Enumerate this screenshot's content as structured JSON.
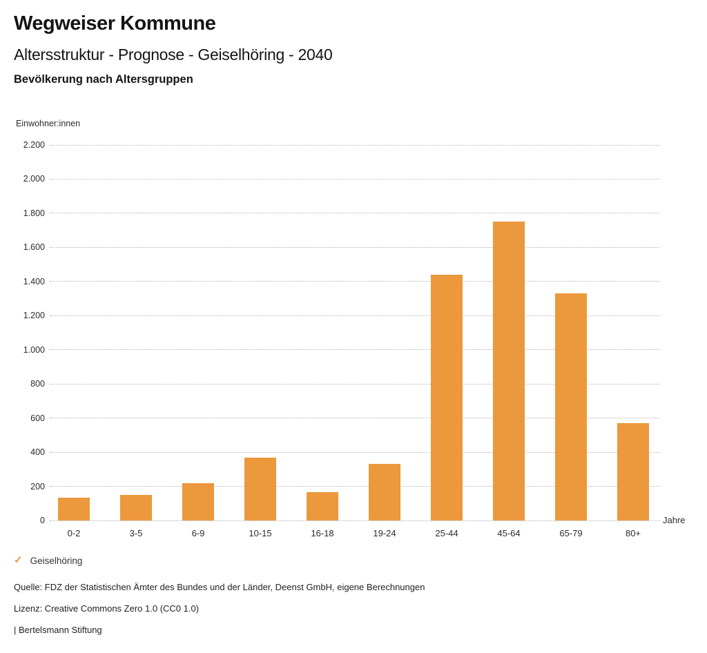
{
  "header": {
    "title": "Wegweiser Kommune",
    "subtitle": "Altersstruktur - Prognose - Geiselhöring - 2040",
    "section_heading": "Bevölkerung nach Altersgruppen"
  },
  "chart_data": {
    "type": "bar",
    "title": "Bevölkerung nach Altersgruppen",
    "series_name": "Geiselhöring",
    "xlabel": "Jahre",
    "ylabel": "Einwohner:innen",
    "categories": [
      "0-2",
      "3-5",
      "6-9",
      "10-15",
      "16-18",
      "19-24",
      "25-44",
      "45-64",
      "65-79",
      "80+"
    ],
    "values": [
      135,
      150,
      220,
      370,
      165,
      330,
      1440,
      1750,
      1330,
      570
    ],
    "ylim": [
      0,
      2200
    ],
    "ytick_step": 200,
    "ytick_labels": [
      "0",
      "200",
      "400",
      "600",
      "800",
      "1.000",
      "1.200",
      "1.400",
      "1.600",
      "1.800",
      "2.000",
      "2.200"
    ],
    "grid": "horizontal-dotted",
    "legend_position": "bottom-left",
    "bar_color": "#EC983C"
  },
  "legend": {
    "check_icon": "✓",
    "label": "Geiselhöring"
  },
  "footer": {
    "source": "Quelle: FDZ der Statistischen Ämter des Bundes und der Länder, Deenst GmbH, eigene Berechnungen",
    "license": "Lizenz: Creative Commons Zero 1.0 (CC0 1.0)",
    "attribution": "| Bertelsmann Stiftung"
  },
  "colors": {
    "bar": "#EC983C",
    "grid": "#b3b3b3",
    "text": "#1a1a1a"
  }
}
